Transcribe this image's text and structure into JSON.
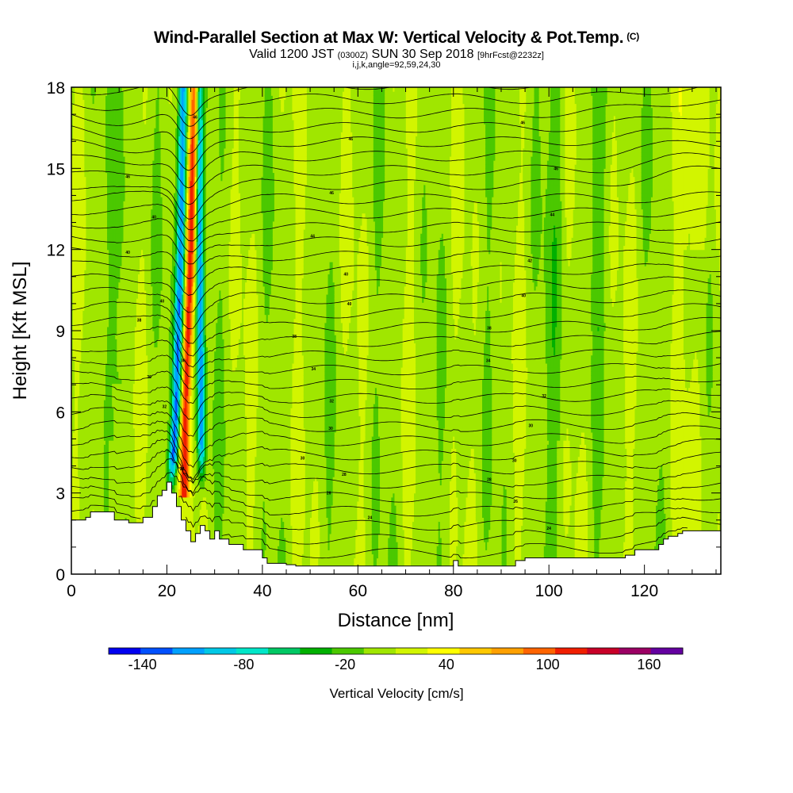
{
  "header": {
    "title": "Wind-Parallel Section at Max W: Vertical Velocity & Pot.Temp.",
    "title_mark": "(C)",
    "valid_prefix": "Valid 1200 JST",
    "valid_utc": "(0300Z)",
    "valid_date": "SUN 30 Sep 2018",
    "forecast": "[9hrFcst@2232z]",
    "section_params": "i,j,k,angle=92,59,24,30"
  },
  "chart_data": {
    "type": "heatmap",
    "title": "Wind-Parallel Section at Max W: Vertical Velocity & Pot.Temp.",
    "xlabel": "Distance [nm]",
    "ylabel": "Height [Kft MSL]",
    "xlim": [
      0,
      136
    ],
    "ylim": [
      0,
      18
    ],
    "x_ticks": [
      "0",
      "20",
      "40",
      "60",
      "80",
      "100",
      "120"
    ],
    "y_ticks": [
      "0",
      "3",
      "6",
      "9",
      "12",
      "15",
      "18"
    ],
    "colorbar": {
      "title": "Vertical Velocity [cm/s]",
      "levels": [
        -160,
        -140,
        -120,
        -100,
        -80,
        -60,
        -40,
        -20,
        0,
        20,
        40,
        60,
        80,
        100,
        120,
        140,
        160,
        180
      ],
      "colors": [
        "#0000f0",
        "#0050ff",
        "#00a0ff",
        "#00c8e6",
        "#00e6c8",
        "#00c864",
        "#00b000",
        "#4bc800",
        "#a0e600",
        "#d2f500",
        "#ffff00",
        "#ffc800",
        "#ffa000",
        "#ff6400",
        "#f01e00",
        "#c80028",
        "#9b0064",
        "#6400a0"
      ],
      "tick_values": [
        -140,
        -80,
        -20,
        40,
        100,
        160
      ],
      "tick_labels": [
        "-140",
        "-80",
        "-20",
        "40",
        "100",
        "160"
      ]
    },
    "updraft_core": {
      "x_center_nm": [
        23.6,
        23.8,
        24.2,
        24.6,
        25.0,
        25.5,
        26.0
      ],
      "y_kft": [
        3.0,
        6.0,
        8.0,
        10.0,
        12.0,
        15.0,
        18.0
      ],
      "max_w_cm_s": 110
    },
    "downdraft_west": {
      "x_center_nm": [
        21.0,
        22.0,
        22.5,
        23.0,
        23.4
      ],
      "y_kft": [
        3.5,
        6.0,
        9.0,
        12.0,
        17.0
      ],
      "min_w_cm_s": -130
    },
    "downdraft_east": {
      "x_center_nm": [
        27.3,
        27.1,
        26.9,
        26.8
      ],
      "y_kft": [
        4.0,
        8.0,
        12.0,
        17.0
      ],
      "min_w_cm_s": -120
    },
    "terrain": {
      "x": [
        0,
        0,
        3,
        3,
        4,
        4,
        9,
        9,
        12,
        12,
        15,
        15,
        17,
        17,
        18,
        18,
        19,
        19,
        20,
        20,
        21,
        21,
        22,
        22,
        23,
        23,
        24,
        24,
        25,
        25,
        26,
        26,
        27,
        27,
        28,
        28,
        29,
        29,
        30,
        30,
        31,
        31,
        33,
        33,
        36,
        36,
        40,
        40,
        41,
        41,
        45,
        45,
        47,
        47,
        80,
        80,
        81,
        81,
        93,
        93,
        95,
        95,
        116,
        116,
        118,
        118,
        123,
        123,
        124,
        124,
        125,
        125,
        127,
        127,
        128,
        128,
        136,
        136
      ],
      "y": [
        0,
        2.0,
        2.0,
        2.1,
        2.1,
        2.3,
        2.3,
        2.0,
        2.0,
        1.9,
        1.9,
        2.1,
        2.1,
        2.5,
        2.5,
        2.9,
        2.9,
        3.1,
        3.1,
        3.4,
        3.4,
        3.0,
        3.0,
        2.5,
        2.5,
        2.0,
        2.0,
        1.6,
        1.6,
        1.2,
        1.2,
        1.5,
        1.5,
        1.8,
        1.8,
        1.6,
        1.6,
        1.3,
        1.3,
        1.6,
        1.6,
        1.3,
        1.3,
        1.1,
        1.1,
        0.9,
        0.9,
        0.6,
        0.6,
        0.4,
        0.4,
        0.35,
        0.35,
        0.3,
        0.3,
        0.5,
        0.5,
        0.3,
        0.3,
        0.5,
        0.5,
        0.6,
        0.6,
        0.7,
        0.7,
        0.9,
        0.9,
        1.1,
        1.1,
        1.3,
        1.3,
        1.4,
        1.4,
        1.5,
        1.5,
        1.6,
        1.6,
        0
      ]
    },
    "theta_contour_labels": [
      {
        "x": 25.9,
        "y": 16.9,
        "text": "46"
      },
      {
        "x": 58.5,
        "y": 16.1,
        "text": "46"
      },
      {
        "x": 94.5,
        "y": 16.7,
        "text": "46"
      },
      {
        "x": 11.8,
        "y": 14.7,
        "text": "46"
      },
      {
        "x": 54.5,
        "y": 14.1,
        "text": "46"
      },
      {
        "x": 101.5,
        "y": 15.0,
        "text": "46"
      },
      {
        "x": 17.3,
        "y": 13.2,
        "text": "40"
      },
      {
        "x": 50.5,
        "y": 12.5,
        "text": "44"
      },
      {
        "x": 100.7,
        "y": 13.3,
        "text": "44"
      },
      {
        "x": 11.8,
        "y": 11.9,
        "text": "40"
      },
      {
        "x": 57.5,
        "y": 11.1,
        "text": "40"
      },
      {
        "x": 96.0,
        "y": 11.6,
        "text": "42"
      },
      {
        "x": 19.0,
        "y": 10.1,
        "text": "40"
      },
      {
        "x": 58.2,
        "y": 10.0,
        "text": "40"
      },
      {
        "x": 94.7,
        "y": 10.3,
        "text": "40"
      },
      {
        "x": 14.2,
        "y": 9.4,
        "text": "38"
      },
      {
        "x": 46.7,
        "y": 8.8,
        "text": "38"
      },
      {
        "x": 87.5,
        "y": 9.1,
        "text": "38"
      },
      {
        "x": 23.4,
        "y": 7.9,
        "text": "36"
      },
      {
        "x": 50.7,
        "y": 7.6,
        "text": "34"
      },
      {
        "x": 87.3,
        "y": 7.9,
        "text": "34"
      },
      {
        "x": 16.3,
        "y": 7.3,
        "text": "36"
      },
      {
        "x": 54.5,
        "y": 6.4,
        "text": "32"
      },
      {
        "x": 99.0,
        "y": 6.6,
        "text": "32"
      },
      {
        "x": 19.5,
        "y": 6.2,
        "text": "32"
      },
      {
        "x": 54.3,
        "y": 5.4,
        "text": "30"
      },
      {
        "x": 96.2,
        "y": 5.5,
        "text": "30"
      },
      {
        "x": 48.4,
        "y": 4.3,
        "text": "30"
      },
      {
        "x": 92.8,
        "y": 4.2,
        "text": "30"
      },
      {
        "x": 23.2,
        "y": 3.9,
        "text": "28"
      },
      {
        "x": 57.1,
        "y": 3.7,
        "text": "28"
      },
      {
        "x": 87.5,
        "y": 3.5,
        "text": "28"
      },
      {
        "x": 53.9,
        "y": 3.0,
        "text": "26"
      },
      {
        "x": 93.0,
        "y": 2.7,
        "text": "26"
      },
      {
        "x": 62.5,
        "y": 2.1,
        "text": "24"
      },
      {
        "x": 100.0,
        "y": 1.7,
        "text": "24"
      }
    ]
  }
}
